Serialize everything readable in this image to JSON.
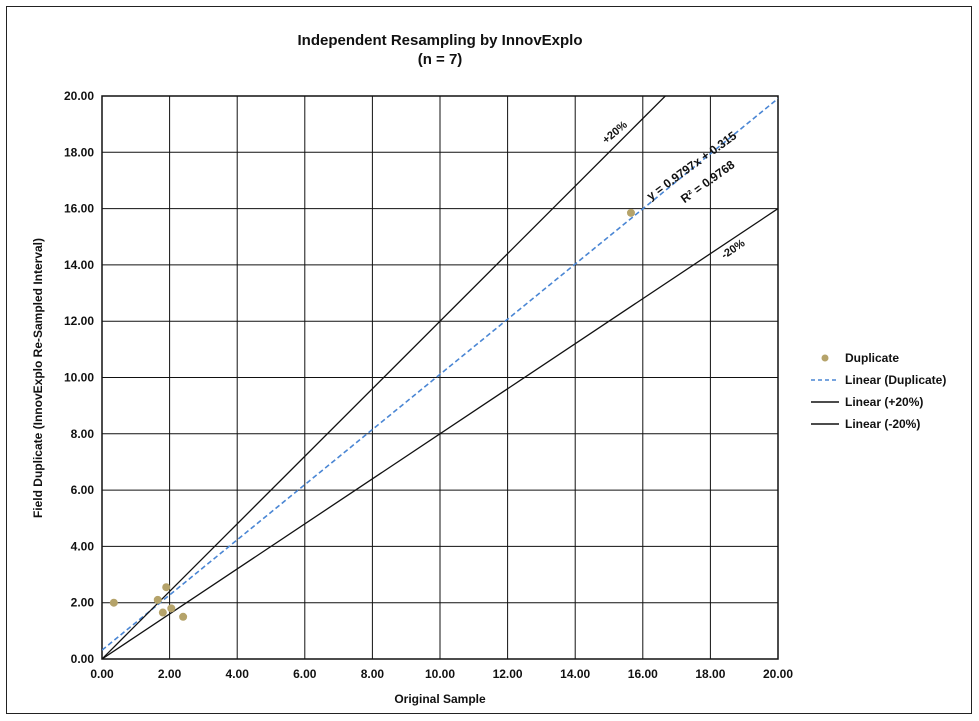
{
  "chart_data": {
    "type": "scatter",
    "title": "Independent Resampling by InnovExplo",
    "subtitle": "(n = 7)",
    "xlabel": "Original Sample",
    "ylabel": "Field Duplicate (InnovExplo Re-Sampled Interval)",
    "xlim": [
      0,
      20
    ],
    "ylim": [
      0,
      20
    ],
    "x_ticks": [
      "0.00",
      "2.00",
      "4.00",
      "6.00",
      "8.00",
      "10.00",
      "12.00",
      "14.00",
      "16.00",
      "18.00",
      "20.00"
    ],
    "y_ticks": [
      "0.00",
      "2.00",
      "4.00",
      "6.00",
      "8.00",
      "10.00",
      "12.00",
      "14.00",
      "16.00",
      "18.00",
      "20.00"
    ],
    "grid": true,
    "legend_position": "right",
    "series": [
      {
        "name": "Duplicate",
        "kind": "points",
        "color": "#b5a36a",
        "points": [
          {
            "x": 0.35,
            "y": 2.0
          },
          {
            "x": 1.65,
            "y": 2.1
          },
          {
            "x": 1.8,
            "y": 1.65
          },
          {
            "x": 1.9,
            "y": 2.55
          },
          {
            "x": 2.05,
            "y": 1.8
          },
          {
            "x": 2.4,
            "y": 1.5
          },
          {
            "x": 15.65,
            "y": 15.85
          }
        ]
      },
      {
        "name": "Linear (Duplicate)",
        "kind": "line",
        "color": "#4a86d4",
        "dashed": true,
        "slope": 0.9797,
        "intercept": 0.315
      },
      {
        "name": "Linear (+20%)",
        "kind": "line",
        "color": "#111111",
        "dashed": false,
        "slope": 1.2,
        "intercept": 0
      },
      {
        "name": "Linear (-20%)",
        "kind": "line",
        "color": "#111111",
        "dashed": false,
        "slope": 0.8,
        "intercept": 0
      }
    ],
    "annotations": {
      "plus20": "+20%",
      "minus20": "-20%",
      "equation": "y = 0.9797x + 0.315",
      "r2": "R² = 0.9768"
    }
  }
}
